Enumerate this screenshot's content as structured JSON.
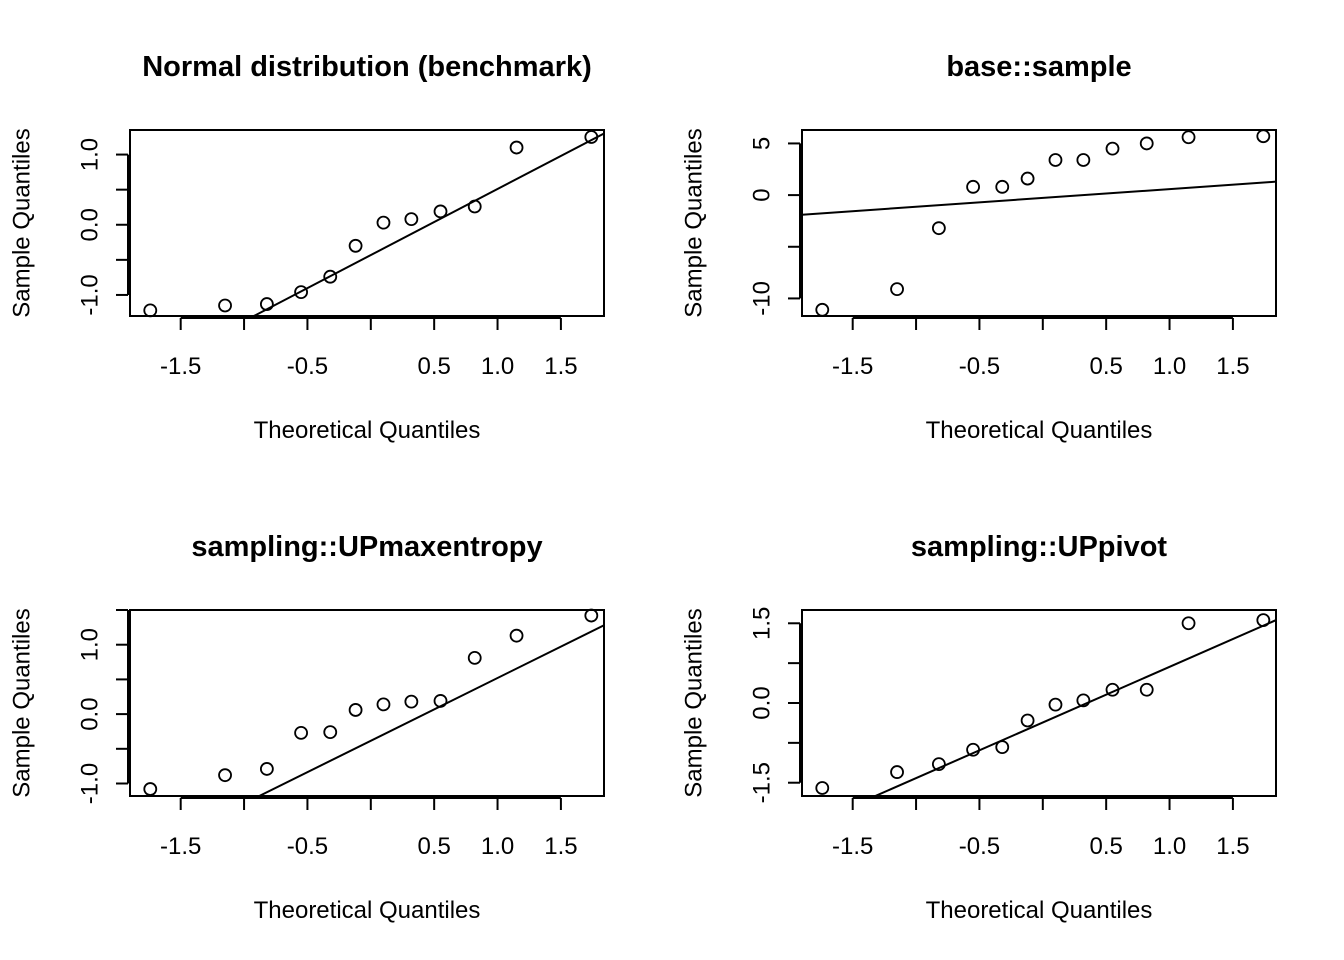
{
  "chart_data": [
    {
      "type": "scatter",
      "title": "Normal distribution (benchmark)",
      "xlabel": "Theoretical Quantiles",
      "ylabel": "Sample Quantiles",
      "xlim": [
        -1.9,
        1.84
      ],
      "ylim": [
        -1.3,
        1.35
      ],
      "xticks": [
        -1.5,
        -1.0,
        -0.5,
        0.0,
        0.5,
        1.0,
        1.5
      ],
      "xtick_labels": [
        "-1.5",
        "",
        "-0.5",
        "",
        "0.5",
        "1.0",
        "1.5"
      ],
      "yticks": [
        -1.0,
        -0.5,
        0.0,
        0.5,
        1.0
      ],
      "ytick_labels": [
        "-1.0",
        "",
        "0.0",
        "",
        "1.0"
      ],
      "x": [
        -1.74,
        -1.15,
        -0.82,
        -0.55,
        -0.32,
        -0.12,
        0.1,
        0.32,
        0.55,
        0.82,
        1.15,
        1.74
      ],
      "y": [
        -1.22,
        -1.15,
        -1.13,
        -0.96,
        -0.74,
        -0.3,
        0.03,
        0.08,
        0.19,
        0.26,
        1.1,
        1.25
      ],
      "qqline": [
        [
          -1.9,
          -2.22
        ],
        [
          1.84,
          1.3
        ]
      ]
    },
    {
      "type": "scatter",
      "title": "base::sample",
      "xlabel": "Theoretical Quantiles",
      "ylabel": "Sample Quantiles",
      "xlim": [
        -1.9,
        1.84
      ],
      "ylim": [
        -11.7,
        6.3
      ],
      "xticks": [
        -1.5,
        -1.0,
        -0.5,
        0.0,
        0.5,
        1.0,
        1.5
      ],
      "xtick_labels": [
        "-1.5",
        "",
        "-0.5",
        "",
        "0.5",
        "1.0",
        "1.5"
      ],
      "yticks": [
        -10,
        -5,
        0,
        5
      ],
      "ytick_labels": [
        "-10",
        "",
        "0",
        "5"
      ],
      "x": [
        -1.74,
        -1.15,
        -0.82,
        -0.55,
        -0.32,
        -0.12,
        0.1,
        0.32,
        0.55,
        0.82,
        1.15,
        1.74
      ],
      "y": [
        -11.1,
        -9.1,
        -3.2,
        0.8,
        0.8,
        1.6,
        3.4,
        3.4,
        4.5,
        5.0,
        5.6,
        5.7
      ],
      "qqline": [
        [
          -1.9,
          -1.9
        ],
        [
          1.84,
          1.3
        ]
      ]
    },
    {
      "type": "scatter",
      "title": "sampling::UPmaxentropy",
      "xlabel": "Theoretical Quantiles",
      "ylabel": "Sample Quantiles",
      "xlim": [
        -1.9,
        1.84
      ],
      "ylim": [
        -1.18,
        1.5
      ],
      "xticks": [
        -1.5,
        -1.0,
        -0.5,
        0.0,
        0.5,
        1.0,
        1.5
      ],
      "xtick_labels": [
        "-1.5",
        "",
        "-0.5",
        "",
        "0.5",
        "1.0",
        "1.5"
      ],
      "yticks": [
        -1.0,
        -0.5,
        0.0,
        0.5,
        1.0,
        1.5
      ],
      "ytick_labels": [
        "-1.0",
        "",
        "0.0",
        "",
        "1.0",
        ""
      ],
      "x": [
        -1.74,
        -1.15,
        -0.82,
        -0.55,
        -0.32,
        -0.12,
        0.1,
        0.32,
        0.55,
        0.82,
        1.15,
        1.74
      ],
      "y": [
        -1.08,
        -0.88,
        -0.79,
        -0.27,
        -0.26,
        0.06,
        0.14,
        0.18,
        0.19,
        0.81,
        1.13,
        1.42
      ],
      "qqline": [
        [
          -0.88,
          -1.18
        ],
        [
          1.84,
          1.28
        ]
      ]
    },
    {
      "type": "scatter",
      "title": "sampling::UPpivot",
      "xlabel": "Theoretical Quantiles",
      "ylabel": "Sample Quantiles",
      "xlim": [
        -1.9,
        1.84
      ],
      "ylim": [
        -1.75,
        1.75
      ],
      "xticks": [
        -1.5,
        -1.0,
        -0.5,
        0.0,
        0.5,
        1.0,
        1.5
      ],
      "xtick_labels": [
        "-1.5",
        "",
        "-0.5",
        "",
        "0.5",
        "1.0",
        "1.5"
      ],
      "yticks": [
        -1.5,
        -0.75,
        0.0,
        0.75,
        1.5
      ],
      "ytick_labels": [
        "-1.5",
        "",
        "0.0",
        "",
        "1.5"
      ],
      "x": [
        -1.74,
        -1.15,
        -0.82,
        -0.55,
        -0.32,
        -0.12,
        0.1,
        0.32,
        0.55,
        0.82,
        1.15,
        1.74
      ],
      "y": [
        -1.6,
        -1.3,
        -1.15,
        -0.88,
        -0.83,
        -0.33,
        -0.03,
        0.05,
        0.25,
        0.25,
        1.5,
        1.56
      ],
      "qqline": [
        [
          -1.35,
          -1.78
        ],
        [
          1.84,
          1.56
        ]
      ]
    }
  ]
}
